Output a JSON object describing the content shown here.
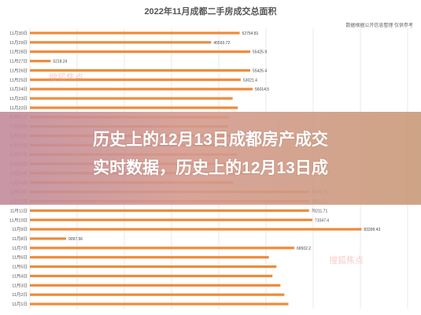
{
  "title": "2022年11月成都二手房成交总面积",
  "source": "数据根据公开信息整理 仅供参考",
  "watermark": "搜狐焦点",
  "headline": {
    "line1": "历史上的12月13日成都房产成交",
    "line2": "实时数据，历史上的12月13日成"
  },
  "colors": {
    "bar": "#ee8b3a",
    "grid": "#d9d9d9"
  },
  "chart_data": {
    "type": "bar",
    "orientation": "horizontal",
    "title": "2022年11月成都二手房成交总面积",
    "categories": [
      "11月30日",
      "11月29日",
      "11月28日",
      "11月27日",
      "11月26日",
      "11月25日",
      "11月24日",
      "11月23日",
      "11月22日",
      "11月21日",
      "11月20日",
      "11月19日",
      "11月18日",
      "11月17日",
      "11月16日",
      "11月15日",
      "11月14日",
      "11月13日",
      "11月12日",
      "11月11日",
      "11月10日",
      "11月9日",
      "11月8日",
      "11月7日",
      "11月6日",
      "11月5日",
      "11月4日",
      "11月3日",
      "11月2日",
      "11月1日"
    ],
    "values": [
      52754.81,
      45593.72,
      55425.9,
      5218.24,
      55426.4,
      53021.4,
      56014.5,
      51000,
      52300,
      50100,
      49800,
      51500,
      50600,
      52100,
      53200,
      55800,
      51200,
      70211.71,
      70211.71,
      70211.71,
      71047.4,
      83399.43,
      9097.56,
      66502.2,
      60100,
      62000,
      61000,
      63000,
      64000,
      65000
    ],
    "data_labels": [
      "52754.81",
      "45593.72",
      "55425.9",
      "5218.24",
      "55426.4",
      "53021.4",
      "56014.5",
      "",
      "",
      "",
      "",
      "",
      "",
      "",
      "",
      "",
      "",
      "70211.71",
      "70211.71",
      "70211.71",
      "71047.4",
      "83399.43",
      "9097.56",
      "66502.2",
      "",
      "",
      "",
      "",
      "",
      ""
    ],
    "xlim": [
      0,
      95000
    ],
    "grid": true
  }
}
